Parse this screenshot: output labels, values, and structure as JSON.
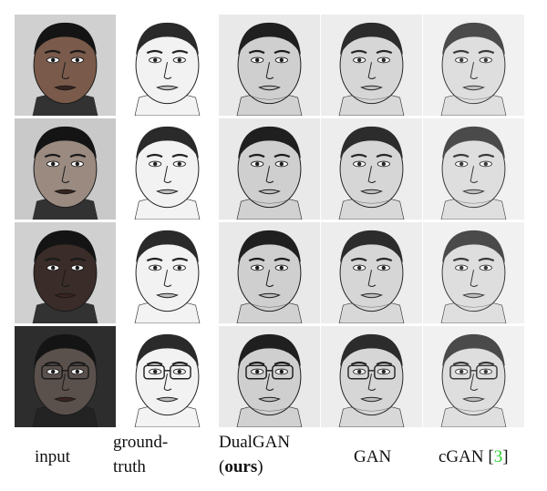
{
  "columns": [
    {
      "id": "input",
      "lines": [
        "input"
      ]
    },
    {
      "id": "ground-truth",
      "lines": [
        "ground-",
        "truth"
      ]
    },
    {
      "id": "dualgan",
      "lines": [
        "DualGAN",
        "(ours)"
      ]
    },
    {
      "id": "gan",
      "lines": [
        "GAN"
      ]
    },
    {
      "id": "cgan",
      "lines": [
        "cGAN [3]"
      ]
    }
  ],
  "label_text": {
    "input": "input",
    "ground_truth_1": "ground-",
    "ground_truth_2": "truth",
    "dualgan_1": "DualGAN",
    "dualgan_open": "(",
    "dualgan_bold": "ours",
    "dualgan_close": ")",
    "gan": "GAN",
    "cgan": "cGAN [",
    "cgan_ref": "3",
    "cgan_close": "]"
  },
  "rows": 4,
  "colors": {
    "citation": "#2bd42b"
  }
}
